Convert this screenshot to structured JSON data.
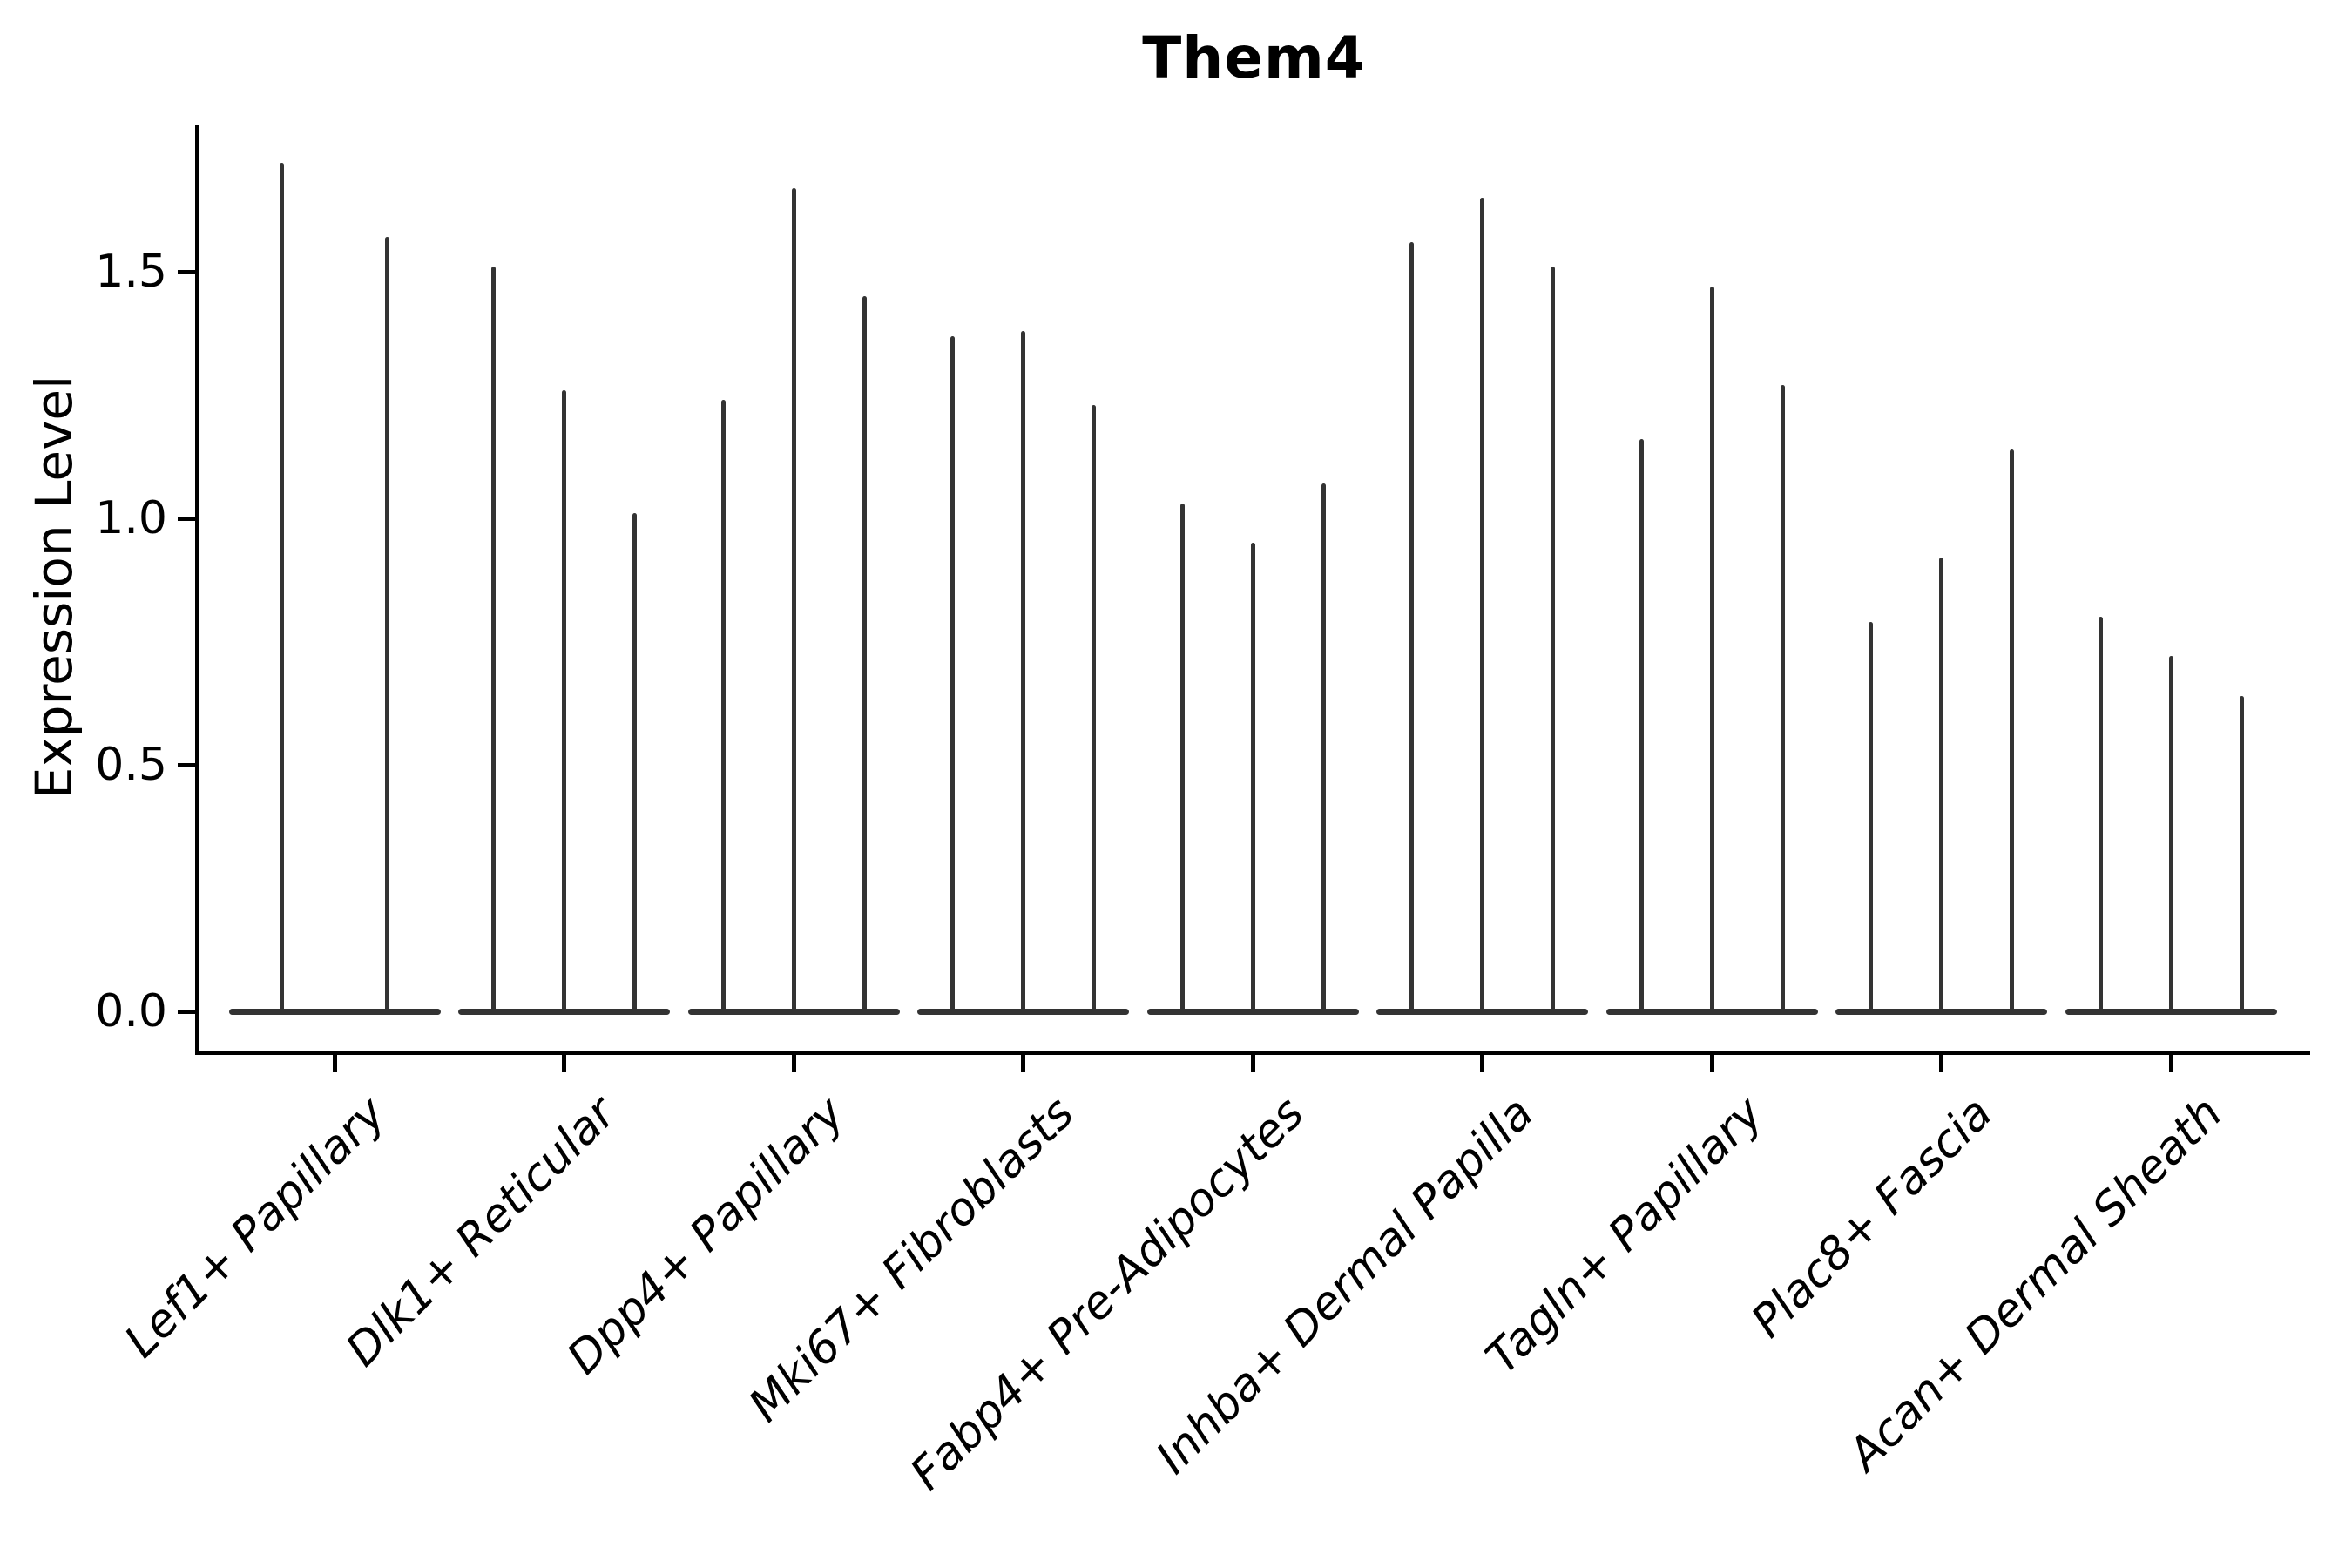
{
  "title": "Them4",
  "chart_data": {
    "type": "violin",
    "title": "Them4",
    "xlabel": "",
    "ylabel": "Expression Level",
    "ylim": [
      -0.09,
      1.8
    ],
    "y_ticks": [
      0.0,
      0.5,
      1.0,
      1.5
    ],
    "y_tick_labels": [
      "0.0",
      "0.5",
      "1.0",
      "1.5"
    ],
    "categories": [
      "Lef1+ Papillary",
      "Dlk1+ Reticular",
      "Dpp4+ Papillary",
      "Mki67+ Fibroblasts",
      "Fabp4+ Pre-Adipocytes",
      "Inhba+ Dermal Papilla",
      "Tagln+ Papillary",
      "Plac8+ Fascia",
      "Acan+ Dermal Sheath"
    ],
    "violin_description": "Each category shows narrow spike-shaped violins (mass concentrated at 0); values are the maximum expression reached by each violin spike, left to right within the group.",
    "violins": [
      [
        1.72,
        1.57
      ],
      [
        1.51,
        1.26,
        1.01
      ],
      [
        1.24,
        1.67,
        1.45
      ],
      [
        1.37,
        1.38,
        1.23
      ],
      [
        1.03,
        0.95,
        1.07
      ],
      [
        1.56,
        1.65,
        1.51
      ],
      [
        1.16,
        1.47,
        1.27
      ],
      [
        0.79,
        0.92,
        1.14
      ],
      [
        0.8,
        0.72,
        0.64
      ]
    ],
    "baseline_value": 0.0,
    "grid": false,
    "legend": false,
    "x_tick_rotation_deg": 45,
    "x_tick_font_style": "italic",
    "colors": {
      "violin": "#333333",
      "axis": "#000000",
      "text": "#000000",
      "background": "#ffffff"
    }
  }
}
